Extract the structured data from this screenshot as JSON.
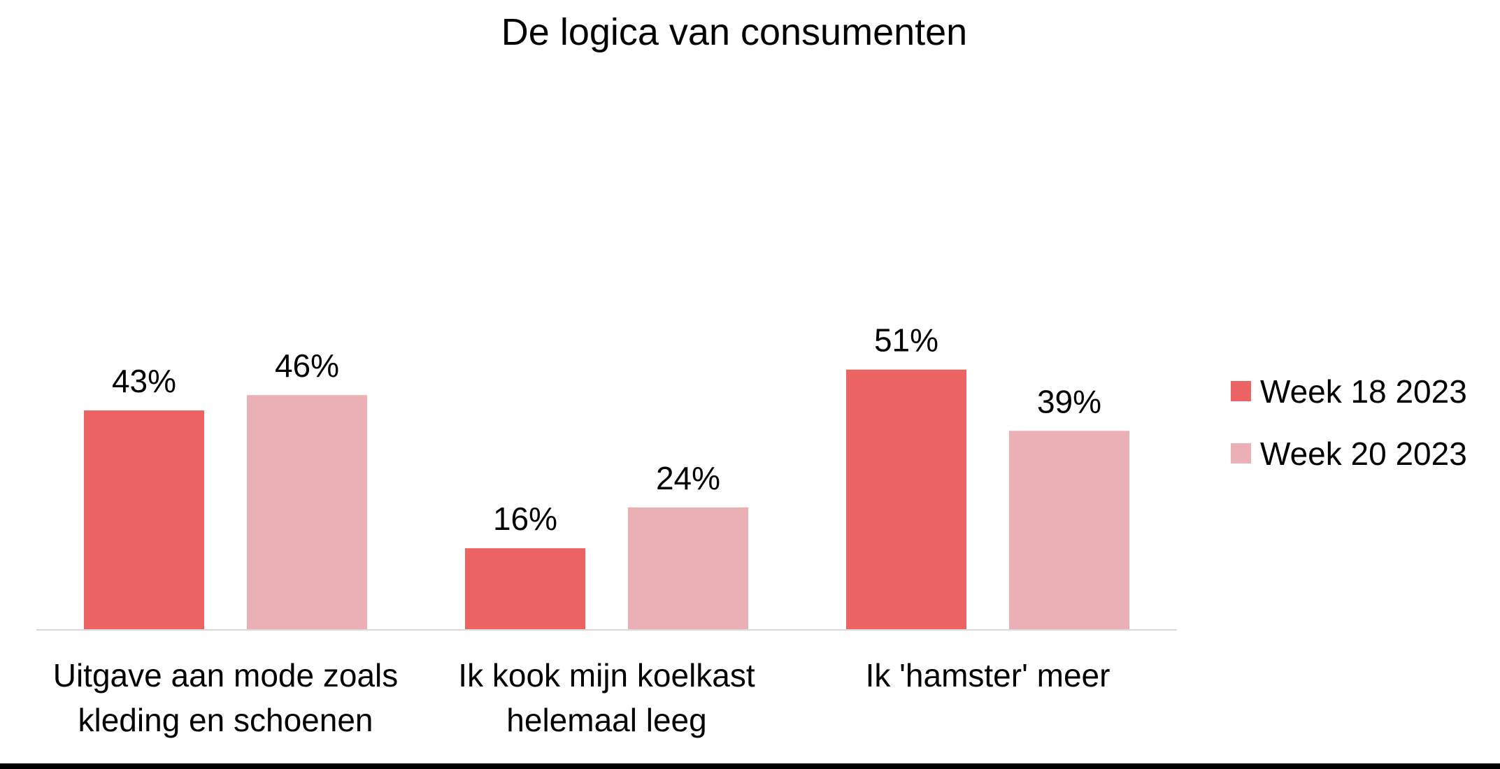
{
  "chart_data": {
    "type": "bar",
    "title": "De logica van consumenten",
    "categories": [
      [
        "Uitgave aan mode zoals",
        "kleding en schoenen"
      ],
      [
        "Ik kook mijn koelkast",
        "helemaal leeg"
      ],
      [
        "Ik 'hamster' meer"
      ]
    ],
    "series": [
      {
        "name": "Week 18 2023",
        "color": "#EC6363",
        "values": [
          43,
          16,
          51
        ]
      },
      {
        "name": "Week 20 2023",
        "color": "#EBAFB6",
        "values": [
          46,
          24,
          39
        ]
      }
    ],
    "value_suffix": "%",
    "ylim": [
      0,
      100
    ],
    "grid": false,
    "legend": "right",
    "axis_color": "#D9D9D9"
  }
}
